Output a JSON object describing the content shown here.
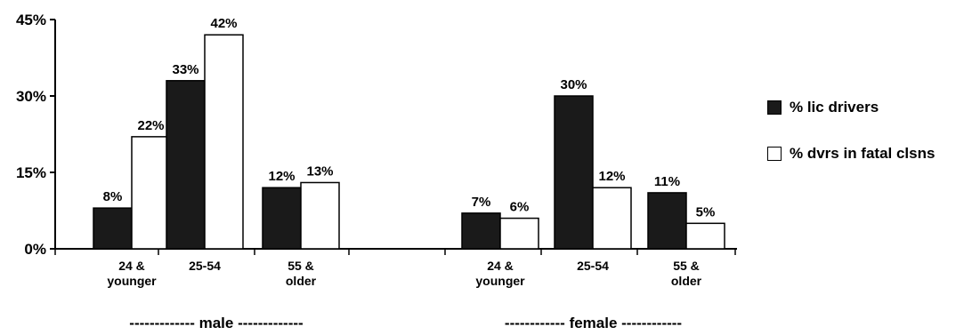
{
  "chart_data": {
    "type": "bar",
    "y_ticks": [
      "0%",
      "15%",
      "30%",
      "45%"
    ],
    "ylim": [
      0,
      45
    ],
    "groups": [
      {
        "label": "------------- male -------------",
        "categories": [
          {
            "label_lines": [
              "24 &",
              "younger"
            ],
            "values": [
              8,
              22
            ],
            "value_labels": [
              "8%",
              "22%"
            ]
          },
          {
            "label_lines": [
              "25-54"
            ],
            "values": [
              33,
              42
            ],
            "value_labels": [
              "33%",
              "42%"
            ]
          },
          {
            "label_lines": [
              "55 &",
              "older"
            ],
            "values": [
              12,
              13
            ],
            "value_labels": [
              "12%",
              "13%"
            ]
          }
        ]
      },
      {
        "label": "------------ female ------------",
        "categories": [
          {
            "label_lines": [
              "24 &",
              "younger"
            ],
            "values": [
              7,
              6
            ],
            "value_labels": [
              "7%",
              "6%"
            ]
          },
          {
            "label_lines": [
              "25-54"
            ],
            "values": [
              30,
              12
            ],
            "value_labels": [
              "30%",
              "12%"
            ]
          },
          {
            "label_lines": [
              "55 &",
              "older"
            ],
            "values": [
              11,
              5
            ],
            "value_labels": [
              "11%",
              "5%"
            ]
          }
        ]
      }
    ],
    "series": [
      {
        "name": "% lic drivers",
        "color": "#1a1a1a"
      },
      {
        "name": "% dvrs in fatal clsns",
        "color": "#ffffff"
      }
    ],
    "legend_position": "right",
    "grid": false
  }
}
